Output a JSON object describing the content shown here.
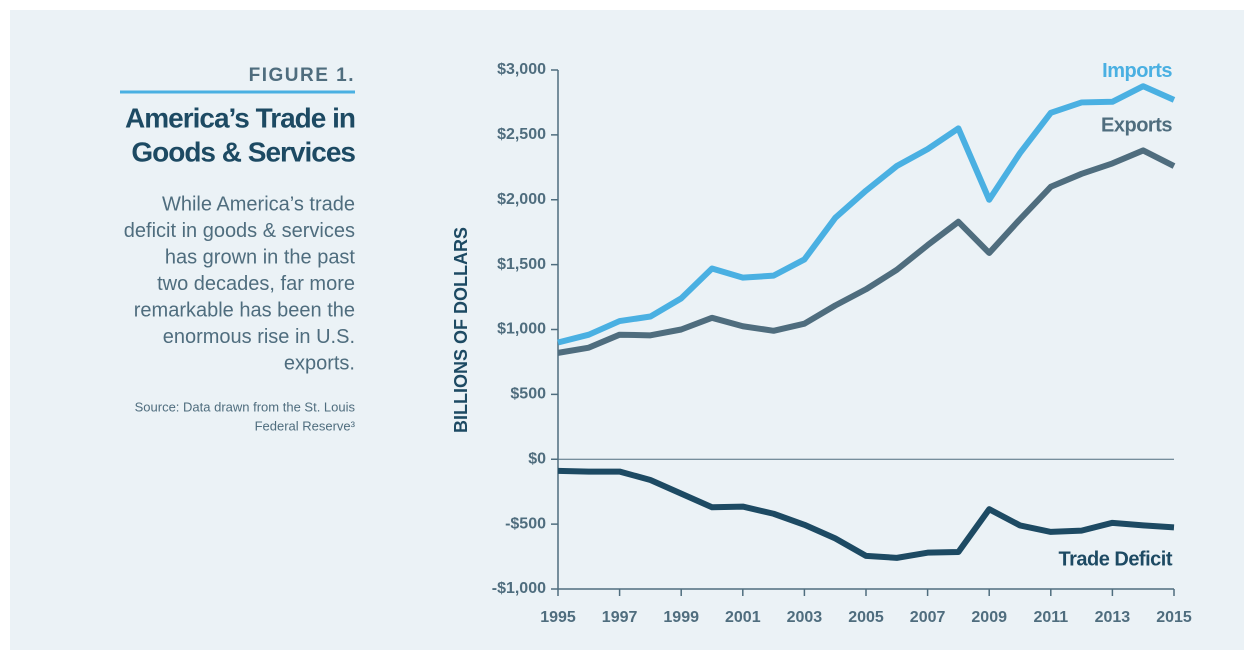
{
  "chart_data": {
    "type": "line",
    "figure_label": "FIGURE 1.",
    "title": [
      "America’s Trade in",
      "Goods & Services"
    ],
    "description": [
      "While America’s trade",
      "deficit in goods & services",
      "has grown in the past",
      "two decades, far more",
      "remarkable has been the",
      "enormous rise in U.S.",
      "exports."
    ],
    "source": [
      "Source: Data drawn from the St. Louis",
      "Federal Reserve³"
    ],
    "y_label": "BILLIONS OF DOLLARS",
    "x": [
      1995,
      1996,
      1997,
      1998,
      1999,
      2000,
      2001,
      2002,
      2003,
      2004,
      2005,
      2006,
      2007,
      2008,
      2009,
      2010,
      2011,
      2012,
      2013,
      2014,
      2015
    ],
    "series": [
      {
        "name": "Imports",
        "color": "#4ab0e2",
        "values": [
          900,
          960,
          1065,
          1100,
          1240,
          1470,
          1400,
          1415,
          1540,
          1860,
          2070,
          2260,
          2390,
          2550,
          2000,
          2360,
          2670,
          2750,
          2755,
          2875,
          2770
        ]
      },
      {
        "name": "Exports",
        "color": "#4f6d7e",
        "values": [
          820,
          860,
          960,
          955,
          1000,
          1090,
          1025,
          990,
          1045,
          1185,
          1310,
          1460,
          1650,
          1830,
          1590,
          1850,
          2100,
          2200,
          2280,
          2380,
          2260
        ]
      },
      {
        "name": "Trade Deficit",
        "color": "#1d4a63",
        "values": [
          -90,
          -95,
          -95,
          -160,
          -265,
          -370,
          -365,
          -420,
          -505,
          -610,
          -745,
          -760,
          -720,
          -715,
          -385,
          -510,
          -560,
          -550,
          -490,
          -510,
          -525
        ]
      }
    ],
    "xlim": [
      1995,
      2015
    ],
    "xticks": [
      1995,
      1997,
      1999,
      2001,
      2003,
      2005,
      2007,
      2009,
      2011,
      2013,
      2015
    ],
    "ylim": [
      -1000,
      3000
    ],
    "yticks": [
      {
        "value": -1000,
        "label": "-$1,000"
      },
      {
        "value": -500,
        "label": "-$500"
      },
      {
        "value": 0,
        "label": "$0"
      },
      {
        "value": 500,
        "label": "$500"
      },
      {
        "value": 1000,
        "label": "$1,000"
      },
      {
        "value": 1500,
        "label": "$1,500"
      },
      {
        "value": 2000,
        "label": "$2,000"
      },
      {
        "value": 2500,
        "label": "$2,500"
      },
      {
        "value": 3000,
        "label": "$3,000"
      }
    ]
  }
}
